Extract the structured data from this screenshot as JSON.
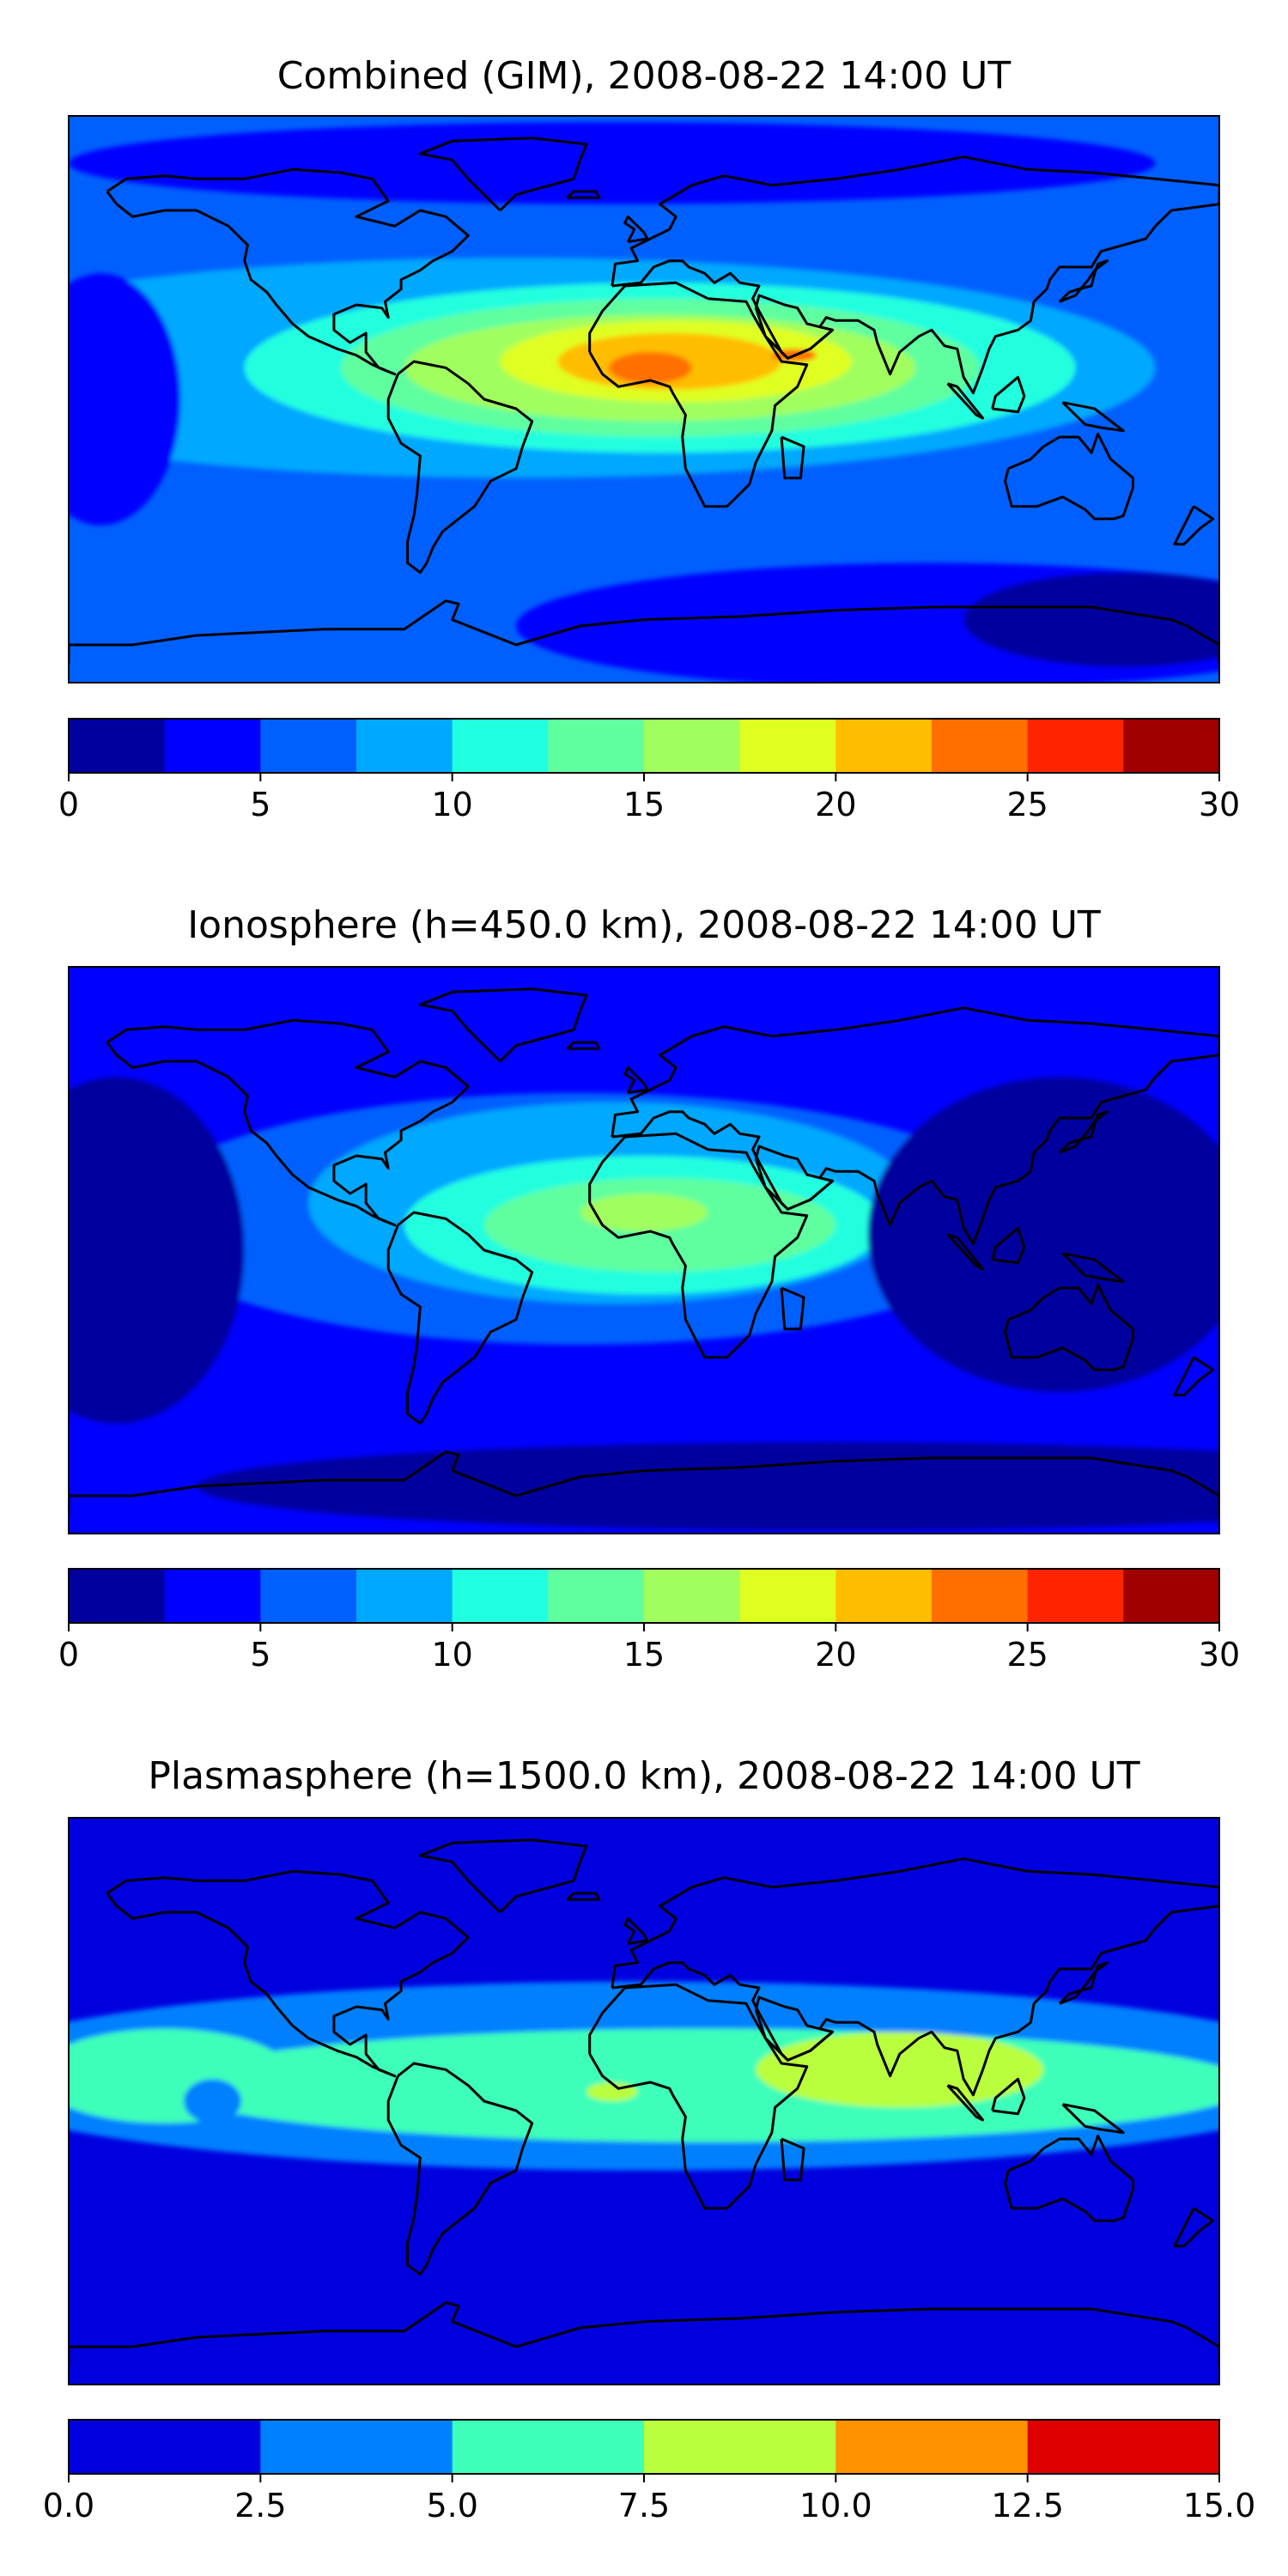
{
  "figure": {
    "coastline_color": "#000000",
    "background_color": "#ffffff"
  },
  "chart_data": [
    {
      "type": "heatmap",
      "subtype": "filled-contour-map",
      "title": "Combined (GIM), 2008-08-22 14:00 UT",
      "projection": "PlateCarree",
      "lon_range": [
        -180,
        180
      ],
      "lat_range": [
        -90,
        90
      ],
      "colormap": "jet",
      "levels": [
        0,
        2.5,
        5,
        7.5,
        10,
        12.5,
        15,
        17.5,
        20,
        22.5,
        25,
        27.5,
        30
      ],
      "level_colors": [
        "#00009f",
        "#0000ff",
        "#0060ff",
        "#00a8ff",
        "#20ffdf",
        "#5fffa0",
        "#a0ff5f",
        "#dfff20",
        "#ffbd00",
        "#ff6f00",
        "#ff2400",
        "#a00000"
      ],
      "colorbar": {
        "orientation": "horizontal",
        "vmin": 0,
        "vmax": 30,
        "ticks": [
          0,
          5,
          10,
          15,
          20,
          25,
          30
        ],
        "tick_labels": [
          "0",
          "5",
          "10",
          "15",
          "20",
          "25",
          "30"
        ]
      },
      "field": {
        "background_level": 2,
        "features": [
          {
            "name": "tropical-belt",
            "lon": -40,
            "lat": 10,
            "rx": 200,
            "ry": 35,
            "level": 3
          },
          {
            "name": "atlantic-africa-crest",
            "lon": 5,
            "lat": 10,
            "rx": 130,
            "ry": 27,
            "level": 4
          },
          {
            "name": "crest-inner",
            "lon": 5,
            "lat": 10,
            "rx": 100,
            "ry": 22,
            "level": 5
          },
          {
            "name": "crest-core",
            "lon": 5,
            "lat": 10,
            "rx": 80,
            "ry": 17,
            "level": 6
          },
          {
            "name": "sahara-high",
            "lon": 10,
            "lat": 12,
            "rx": 55,
            "ry": 13,
            "level": 7
          },
          {
            "name": "sahara-higher",
            "lon": 8,
            "lat": 12,
            "rx": 35,
            "ry": 9,
            "level": 8
          },
          {
            "name": "sahara-peak",
            "lon": 2,
            "lat": 10,
            "rx": 13,
            "ry": 5,
            "level": 9
          },
          {
            "name": "arabia-peak",
            "lon": 47,
            "lat": 14,
            "rx": 7,
            "ry": 2,
            "level": 9
          },
          {
            "name": "pacific-low",
            "lon": -170,
            "lat": 0,
            "rx": 25,
            "ry": 40,
            "level": 1
          },
          {
            "name": "north-low",
            "lon": -10,
            "lat": 75,
            "rx": 170,
            "ry": 13,
            "level": 1
          },
          {
            "name": "south-low",
            "lon": 90,
            "lat": -72,
            "rx": 130,
            "ry": 20,
            "level": 1
          },
          {
            "name": "south-east-core",
            "lon": 150,
            "lat": -70,
            "rx": 50,
            "ry": 15,
            "level": 0
          }
        ]
      }
    },
    {
      "type": "heatmap",
      "subtype": "filled-contour-map",
      "title": "Ionosphere  (h=450.0 km), 2008-08-22 14:00 UT",
      "projection": "PlateCarree",
      "lon_range": [
        -180,
        180
      ],
      "lat_range": [
        -90,
        90
      ],
      "colormap": "jet",
      "levels": [
        0,
        2.5,
        5,
        7.5,
        10,
        12.5,
        15,
        17.5,
        20,
        22.5,
        25,
        27.5,
        30
      ],
      "level_colors": [
        "#00009f",
        "#0000ff",
        "#0060ff",
        "#00a8ff",
        "#20ffdf",
        "#5fffa0",
        "#a0ff5f",
        "#dfff20",
        "#ffbd00",
        "#ff6f00",
        "#ff2400",
        "#a00000"
      ],
      "colorbar": {
        "orientation": "horizontal",
        "vmin": 0,
        "vmax": 30,
        "ticks": [
          0,
          5,
          10,
          15,
          20,
          25,
          30
        ],
        "tick_labels": [
          "0",
          "5",
          "10",
          "15",
          "20",
          "25",
          "30"
        ]
      },
      "field": {
        "background_level": 1,
        "features": [
          {
            "name": "mid-band",
            "lon": -20,
            "lat": 10,
            "rx": 140,
            "ry": 40,
            "level": 2
          },
          {
            "name": "atlantic-africa",
            "lon": -10,
            "lat": 15,
            "rx": 95,
            "ry": 32,
            "level": 3
          },
          {
            "name": "africa-crest",
            "lon": 0,
            "lat": 8,
            "rx": 75,
            "ry": 22,
            "level": 4
          },
          {
            "name": "africa-core",
            "lon": 5,
            "lat": 8,
            "rx": 55,
            "ry": 15,
            "level": 5
          },
          {
            "name": "africa-peak",
            "lon": 0,
            "lat": 12,
            "rx": 20,
            "ry": 6,
            "level": 6
          },
          {
            "name": "pacific-low",
            "lon": -165,
            "lat": 0,
            "rx": 40,
            "ry": 55,
            "level": 0
          },
          {
            "name": "asia-low",
            "lon": 130,
            "lat": 5,
            "rx": 60,
            "ry": 50,
            "level": 0
          },
          {
            "name": "south-low",
            "lon": 60,
            "lat": -75,
            "rx": 200,
            "ry": 14,
            "level": 0
          }
        ]
      }
    },
    {
      "type": "heatmap",
      "subtype": "filled-contour-map",
      "title": "Plasmasphere (h=1500.0 km), 2008-08-22 14:00 UT",
      "projection": "PlateCarree",
      "lon_range": [
        -180,
        180
      ],
      "lat_range": [
        -90,
        90
      ],
      "colormap": "jet",
      "levels": [
        0.0,
        2.5,
        5.0,
        7.5,
        10.0,
        12.5,
        15.0
      ],
      "level_colors": [
        "#0000df",
        "#0080ff",
        "#3dffb9",
        "#b9ff3d",
        "#ff9200",
        "#df0000"
      ],
      "colorbar": {
        "orientation": "horizontal",
        "vmin": 0.0,
        "vmax": 15.0,
        "ticks": [
          0.0,
          2.5,
          5.0,
          7.5,
          10.0,
          12.5,
          15.0
        ],
        "tick_labels": [
          "0.0",
          "2.5",
          "5.0",
          "7.5",
          "10.0",
          "12.5",
          "15.0"
        ]
      },
      "field": {
        "background_level": 0,
        "features": [
          {
            "name": "equatorial-band",
            "lon": 0,
            "lat": 8,
            "rx": 220,
            "ry": 30,
            "level": 1
          },
          {
            "name": "equatorial-core",
            "lon": 20,
            "lat": 5,
            "rx": 170,
            "ry": 18,
            "level": 2
          },
          {
            "name": "west-core",
            "lon": -150,
            "lat": 8,
            "rx": 40,
            "ry": 15,
            "level": 2
          },
          {
            "name": "west-hole",
            "lon": -135,
            "lat": 0,
            "rx": 9,
            "ry": 7,
            "level": 1
          },
          {
            "name": "indian-ocean-high",
            "lon": 80,
            "lat": 10,
            "rx": 45,
            "ry": 12,
            "level": 3
          },
          {
            "name": "gulf-high",
            "lon": -10,
            "lat": 3,
            "rx": 8,
            "ry": 3,
            "level": 3
          }
        ]
      }
    }
  ]
}
